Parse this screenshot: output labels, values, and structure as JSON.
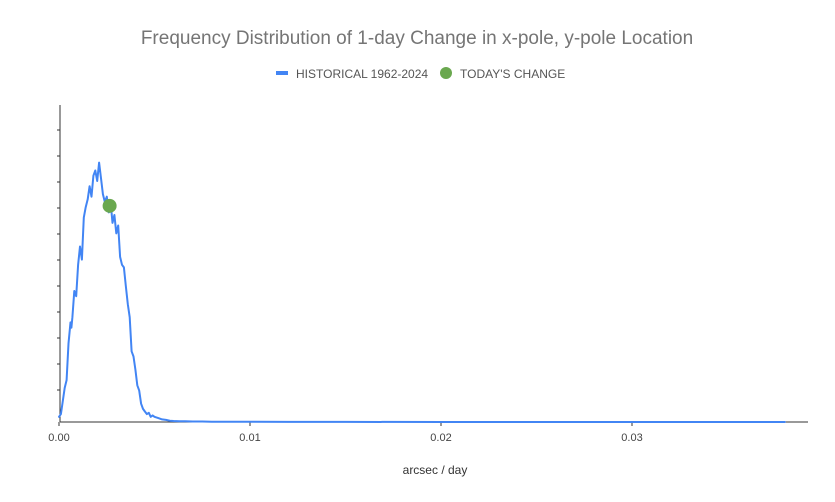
{
  "chart_data": {
    "type": "line",
    "title": "Frequency Distribution of 1-day Change in x-pole, y-pole Location",
    "xlabel": "arcsec / day",
    "ylabel": "",
    "xlim": [
      0,
      0.038
    ],
    "ylim": [
      0,
      1.0
    ],
    "x_ticks": [
      0.0,
      0.01,
      0.02,
      0.03
    ],
    "x_tick_labels": [
      "0.00",
      "0.01",
      "0.02",
      "0.03"
    ],
    "legend_position": "top-center",
    "legend": [
      {
        "name": "HISTORICAL 1962-2024",
        "color": "#4285f4",
        "marker": "line"
      },
      {
        "name": "TODAY'S CHANGE",
        "color": "#6aa84f",
        "marker": "circle"
      }
    ],
    "series": [
      {
        "name": "HISTORICAL 1962-2024",
        "color": "#4285f4",
        "x": [
          0.0,
          0.0001,
          0.0002,
          0.0003,
          0.0004,
          0.0005,
          0.0006,
          0.00065,
          0.0007,
          0.0008,
          0.0009,
          0.001,
          0.0011,
          0.0012,
          0.0013,
          0.0014,
          0.0015,
          0.0016,
          0.0017,
          0.0018,
          0.0019,
          0.002,
          0.0021,
          0.0022,
          0.0023,
          0.0024,
          0.0025,
          0.0026,
          0.0027,
          0.0028,
          0.0029,
          0.003,
          0.0031,
          0.0032,
          0.0033,
          0.0034,
          0.0035,
          0.0036,
          0.0037,
          0.0038,
          0.0039,
          0.004,
          0.0041,
          0.0042,
          0.0043,
          0.0044,
          0.0045,
          0.0046,
          0.0047,
          0.0048,
          0.0049,
          0.005,
          0.0052,
          0.0054,
          0.0056,
          0.0058,
          0.006,
          0.0063,
          0.0066,
          0.007,
          0.0075,
          0.008,
          0.009,
          0.01,
          0.012,
          0.015,
          0.02,
          0.025,
          0.03,
          0.035,
          0.038
        ],
        "y": [
          0.02,
          0.03,
          0.08,
          0.13,
          0.16,
          0.3,
          0.38,
          0.36,
          0.4,
          0.5,
          0.48,
          0.6,
          0.67,
          0.62,
          0.78,
          0.82,
          0.85,
          0.9,
          0.86,
          0.94,
          0.96,
          0.92,
          0.99,
          0.93,
          0.87,
          0.84,
          0.86,
          0.8,
          0.84,
          0.76,
          0.79,
          0.72,
          0.75,
          0.63,
          0.6,
          0.59,
          0.52,
          0.45,
          0.4,
          0.27,
          0.25,
          0.2,
          0.14,
          0.12,
          0.07,
          0.05,
          0.04,
          0.03,
          0.035,
          0.02,
          0.025,
          0.02,
          0.015,
          0.01,
          0.008,
          0.005,
          0.004,
          0.003,
          0.003,
          0.002,
          0.002,
          0.001,
          0.001,
          0.001,
          0.0005,
          0.0005,
          0.0,
          0.0,
          0.0,
          0.0,
          0.0
        ]
      }
    ],
    "today_point": {
      "name": "TODAY'S CHANGE",
      "x": 0.00265,
      "y": 0.825,
      "color": "#6aa84f"
    }
  }
}
